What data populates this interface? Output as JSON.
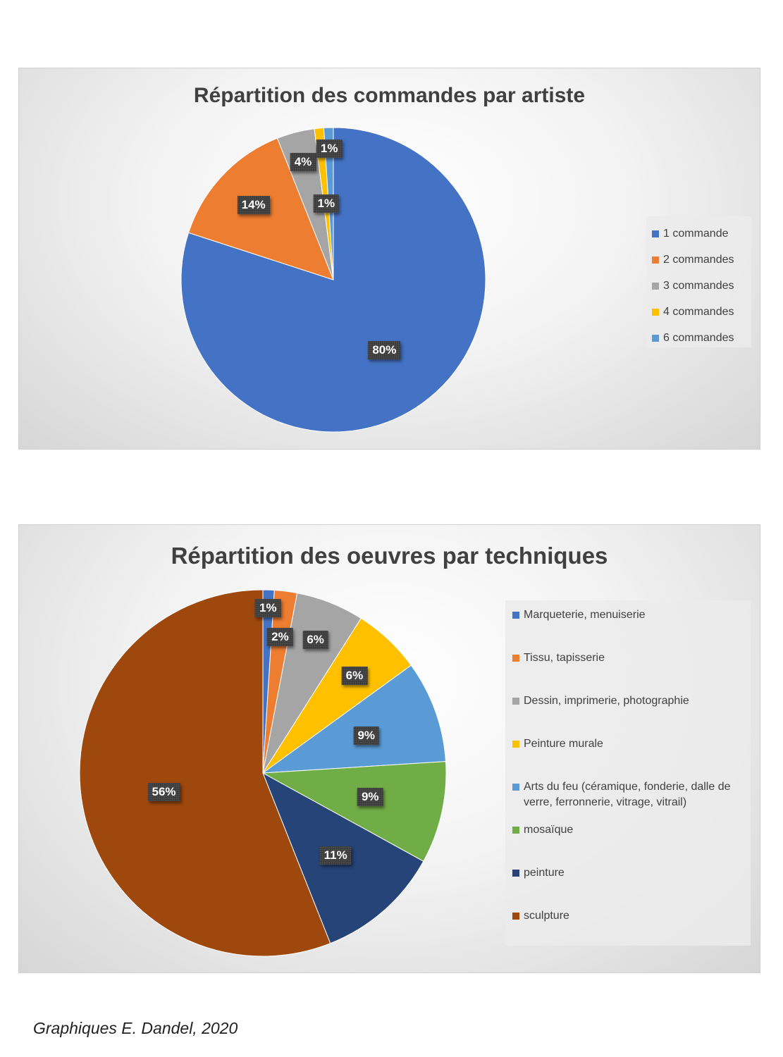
{
  "chart_data": [
    {
      "type": "pie",
      "title": "Répartition des commandes par artiste",
      "categories": [
        "1 commande",
        "2 commandes",
        "3 commandes",
        "4 commandes",
        "6 commandes"
      ],
      "values": [
        80,
        14,
        4,
        1,
        1
      ],
      "data_labels": [
        "80%",
        "14%",
        "4%",
        "1%",
        "1%"
      ],
      "colors": [
        "#4472C4",
        "#ED7D31",
        "#A5A5A5",
        "#FFC000",
        "#5B9BD5"
      ],
      "legend_position": "right"
    },
    {
      "type": "pie",
      "title": "Répartition des oeuvres par techniques",
      "categories": [
        "Marqueterie, menuiserie",
        "Tissu, tapisserie",
        "Dessin, imprimerie, photographie",
        "Peinture murale",
        "Arts du feu (céramique, fonderie, dalle de verre, ferronnerie, vitrage, vitrail)",
        "mosaïque",
        "peinture",
        "sculpture"
      ],
      "values": [
        1,
        2,
        6,
        6,
        9,
        9,
        11,
        56
      ],
      "data_labels": [
        "1%",
        "2%",
        "6%",
        "6%",
        "9%",
        "9%",
        "11%",
        "56%"
      ],
      "colors": [
        "#4472C4",
        "#ED7D31",
        "#A5A5A5",
        "#FFC000",
        "#5B9BD5",
        "#70AD47",
        "#264478",
        "#9E480E"
      ],
      "legend_position": "right"
    }
  ],
  "footer": {
    "credit": "Graphiques E. Dandel, 2020"
  }
}
